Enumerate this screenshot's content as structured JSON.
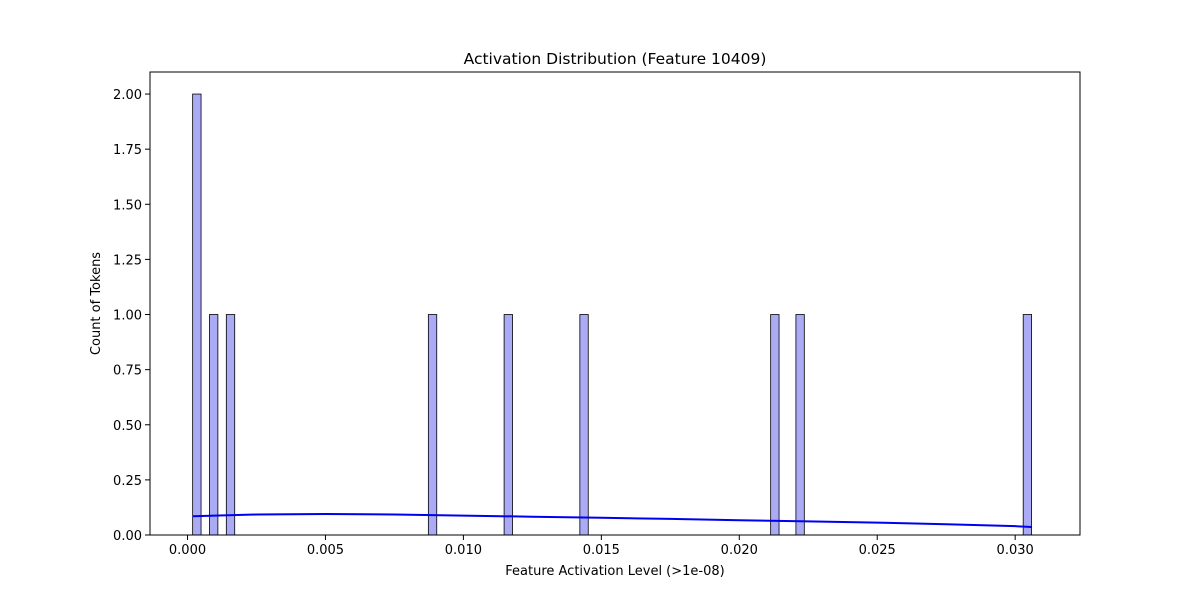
{
  "chart_data": {
    "type": "bar",
    "title": "Activation Distribution (Feature 10409)",
    "xlabel": "Feature Activation Level (>1e-08)",
    "ylabel": "Count of Tokens",
    "xlim": [
      -0.00136,
      0.03235
    ],
    "ylim": [
      0,
      2.1
    ],
    "xticks": [
      0.0,
      0.005,
      0.01,
      0.015,
      0.02,
      0.025,
      0.03
    ],
    "xtick_labels": [
      "0.000",
      "0.005",
      "0.010",
      "0.015",
      "0.020",
      "0.025",
      "0.030"
    ],
    "yticks": [
      0.0,
      0.25,
      0.5,
      0.75,
      1.0,
      1.25,
      1.5,
      1.75,
      2.0
    ],
    "ytick_labels": [
      "0.00",
      "0.25",
      "0.50",
      "0.75",
      "1.00",
      "1.25",
      "1.50",
      "1.75",
      "2.00"
    ],
    "bar_color": "#aaaaf5",
    "bar_edge_color": "#000000",
    "kde_color": "#0000ee",
    "grid": false,
    "bars": [
      {
        "x0": 0.000186,
        "x1": 0.000491,
        "count": 2
      },
      {
        "x0": 0.000796,
        "x1": 0.001101,
        "count": 1
      },
      {
        "x0": 0.001406,
        "x1": 0.001711,
        "count": 1
      },
      {
        "x0": 0.008729,
        "x1": 0.009034,
        "count": 1
      },
      {
        "x0": 0.011475,
        "x1": 0.01178,
        "count": 1
      },
      {
        "x0": 0.014221,
        "x1": 0.014526,
        "count": 1
      },
      {
        "x0": 0.021137,
        "x1": 0.021442,
        "count": 1
      },
      {
        "x0": 0.022052,
        "x1": 0.022357,
        "count": 1
      },
      {
        "x0": 0.030291,
        "x1": 0.030596,
        "count": 1
      }
    ],
    "kde": {
      "x": [
        0.00018,
        0.0025,
        0.005,
        0.0075,
        0.01,
        0.0125,
        0.015,
        0.0175,
        0.02,
        0.0225,
        0.025,
        0.0275,
        0.03,
        0.0306
      ],
      "y": [
        0.085,
        0.093,
        0.095,
        0.093,
        0.088,
        0.083,
        0.078,
        0.073,
        0.067,
        0.062,
        0.056,
        0.049,
        0.04,
        0.036
      ]
    }
  }
}
